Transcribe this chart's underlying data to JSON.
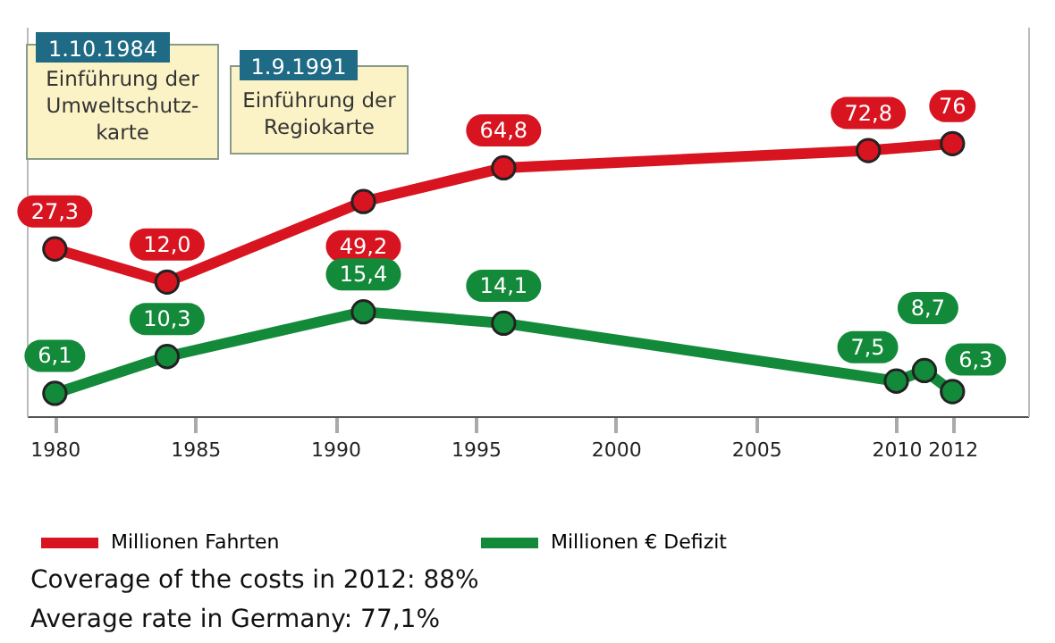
{
  "chart_data": {
    "type": "line",
    "xlim": [
      1979,
      2014.7
    ],
    "xticks": [
      1980,
      1985,
      1990,
      1995,
      2000,
      2005,
      2010,
      2012
    ],
    "series": [
      {
        "name": "Millionen Fahrten",
        "color": "#d7141f",
        "x": [
          1980,
          1984,
          1991,
          1996,
          2009,
          2012
        ],
        "values": [
          27.3,
          12.0,
          49.2,
          64.8,
          72.8,
          76
        ],
        "value_labels": [
          "27,3",
          "12,0",
          "49,2",
          "64,8",
          "72,8",
          "76"
        ]
      },
      {
        "name": "Millionen € Defizit",
        "color": "#138a3a",
        "axis": "y2",
        "x": [
          1980,
          1984,
          1991,
          1996,
          2010,
          2011,
          2012
        ],
        "values": [
          6.1,
          10.3,
          15.4,
          14.1,
          7.5,
          8.7,
          6.3
        ],
        "value_labels": [
          "6,1",
          "10,3",
          "15,4",
          "14,1",
          "7,5",
          "8,7",
          "6,3"
        ]
      }
    ],
    "ylim": [
      -50,
      130
    ],
    "y2lim": [
      3.5,
      47.9
    ],
    "tick_labels": "x",
    "marker": "circle",
    "legend": "bottom",
    "annotations": [
      "1.10.1984",
      "Einführung der\nUmweltschutz-\nkarte",
      "1.9.1991",
      "Einführung der\nRegiokarte",
      "Coverage of the costs in 2012: 88%",
      "Average rate in Germany: 77,1%"
    ]
  }
}
